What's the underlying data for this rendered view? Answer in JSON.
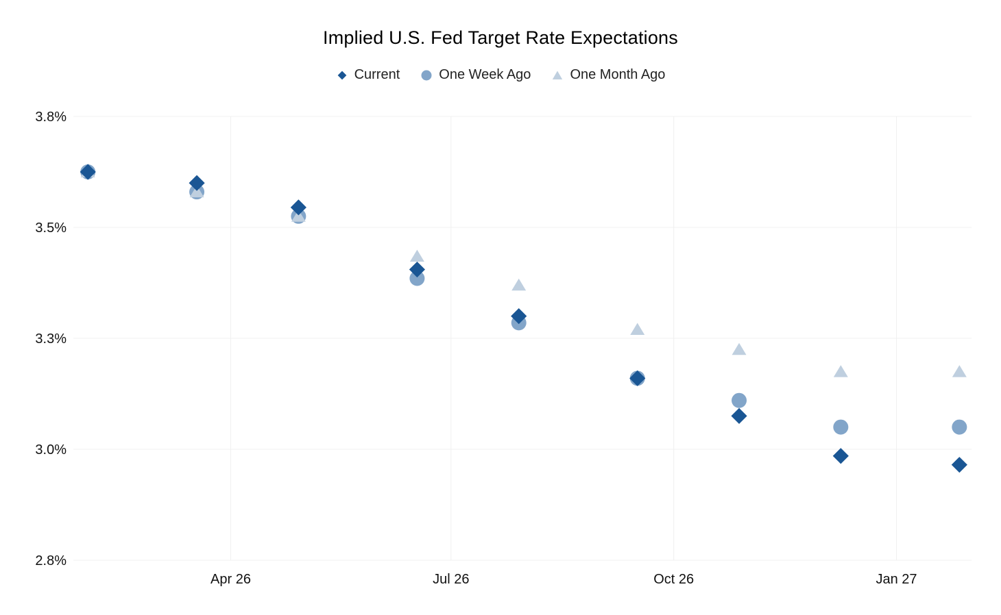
{
  "title": "Implied U.S. Fed Target Rate Expectations",
  "legend": [
    {
      "label": "Current",
      "marker": "diamond",
      "color": "#1A5694"
    },
    {
      "label": "One Week Ago",
      "marker": "circle",
      "color": "#82A5C9"
    },
    {
      "label": "One Month Ago",
      "marker": "triangle",
      "color": "#BFCFDF"
    }
  ],
  "chart_data": {
    "type": "scatter",
    "title": "Implied U.S. Fed Target Rate Expectations",
    "xlabel": "",
    "ylabel": "",
    "grid": true,
    "legend_position": "top",
    "x_axis": {
      "range": [
        "2026-01-26",
        "2027-02-01"
      ],
      "ticks": [
        {
          "date": "2026-04-01",
          "label": "Apr 26"
        },
        {
          "date": "2026-07-01",
          "label": "Jul 26"
        },
        {
          "date": "2026-10-01",
          "label": "Oct 26"
        },
        {
          "date": "2027-01-01",
          "label": "Jan 27"
        }
      ]
    },
    "y_axis": {
      "unit": "%",
      "range": [
        2.75,
        3.75
      ],
      "ticks": [
        {
          "value": 3.75,
          "label": "3.8%"
        },
        {
          "value": 3.5,
          "label": "3.5%"
        },
        {
          "value": 3.25,
          "label": "3.3%"
        },
        {
          "value": 3.0,
          "label": "3.0%"
        },
        {
          "value": 2.75,
          "label": "2.8%"
        }
      ]
    },
    "draw_order": [
      1,
      2,
      0
    ],
    "series": [
      {
        "name": "Current",
        "marker": "diamond",
        "color": "#1A5694",
        "points": [
          {
            "date": "2026-02-01",
            "value": 3.625
          },
          {
            "date": "2026-03-18",
            "value": 3.6
          },
          {
            "date": "2026-04-29",
            "value": 3.545
          },
          {
            "date": "2026-06-17",
            "value": 3.405
          },
          {
            "date": "2026-07-29",
            "value": 3.3
          },
          {
            "date": "2026-09-16",
            "value": 3.16
          },
          {
            "date": "2026-10-28",
            "value": 3.075
          },
          {
            "date": "2026-12-09",
            "value": 2.985
          },
          {
            "date": "2027-01-27",
            "value": 2.965
          }
        ]
      },
      {
        "name": "One Week Ago",
        "marker": "circle",
        "color": "#82A5C9",
        "points": [
          {
            "date": "2026-02-01",
            "value": 3.625
          },
          {
            "date": "2026-03-18",
            "value": 3.58
          },
          {
            "date": "2026-04-29",
            "value": 3.525
          },
          {
            "date": "2026-06-17",
            "value": 3.385
          },
          {
            "date": "2026-07-29",
            "value": 3.285
          },
          {
            "date": "2026-09-16",
            "value": 3.16
          },
          {
            "date": "2026-10-28",
            "value": 3.11
          },
          {
            "date": "2026-12-09",
            "value": 3.05
          },
          {
            "date": "2027-01-27",
            "value": 3.05
          }
        ]
      },
      {
        "name": "One Month Ago",
        "marker": "triangle",
        "color": "#BFCFDF",
        "points": [
          {
            "date": "2026-02-01",
            "value": 3.625
          },
          {
            "date": "2026-03-18",
            "value": 3.58
          },
          {
            "date": "2026-04-29",
            "value": 3.525
          },
          {
            "date": "2026-06-17",
            "value": 3.435
          },
          {
            "date": "2026-07-29",
            "value": 3.37
          },
          {
            "date": "2026-09-16",
            "value": 3.27
          },
          {
            "date": "2026-10-28",
            "value": 3.225
          },
          {
            "date": "2026-12-09",
            "value": 3.175
          },
          {
            "date": "2027-01-27",
            "value": 3.175
          }
        ]
      }
    ]
  }
}
